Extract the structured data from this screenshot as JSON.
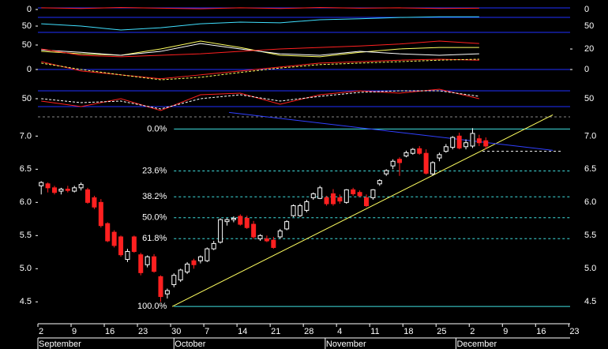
{
  "chart_data": [
    {
      "type": "candlestick",
      "xlim": [
        0,
        80.2
      ],
      "ylim": [
        4.17,
        7.29
      ],
      "up_color": "#ffffff",
      "down_color": "#ff2020",
      "xticks": [
        {
          "value": 0,
          "label": "2"
        },
        {
          "value": 5,
          "label": "9"
        },
        {
          "value": 10,
          "label": "16"
        },
        {
          "value": 15,
          "label": "23"
        },
        {
          "value": 20,
          "label": "30"
        },
        {
          "value": 25,
          "label": "7"
        },
        {
          "value": 30,
          "label": "14"
        },
        {
          "value": 35,
          "label": "21"
        },
        {
          "value": 40,
          "label": "28"
        },
        {
          "value": 45,
          "label": "4"
        },
        {
          "value": 50,
          "label": "11"
        },
        {
          "value": 55,
          "label": "18"
        },
        {
          "value": 60,
          "label": "25"
        },
        {
          "value": 65,
          "label": "2"
        },
        {
          "value": 70,
          "label": "9"
        },
        {
          "value": 75,
          "label": "16"
        },
        {
          "value": 80,
          "label": "23"
        }
      ],
      "months": [
        {
          "value": 0,
          "label": "September"
        },
        {
          "value": 20.5,
          "label": "October"
        },
        {
          "value": 43.3,
          "label": "November"
        },
        {
          "value": 63,
          "label": "December"
        }
      ],
      "yticks": [
        4.5,
        {
          "value": 5,
          "label": "5.0"
        },
        5.5,
        {
          "value": 6,
          "label": "6.0"
        },
        6.5,
        {
          "value": 7,
          "label": "7.0"
        }
      ],
      "x": [
        0.5,
        1.5,
        2.5,
        3.5,
        4.5,
        5.5,
        6.5,
        7.5,
        8.5,
        9.5,
        10.5,
        11.5,
        12.5,
        13.5,
        14.5,
        15.5,
        16.5,
        17.5,
        18.5,
        19.5,
        20.5,
        21.5,
        22.5,
        23.5,
        24.5,
        25.5,
        26.5,
        27.5,
        28.5,
        29.5,
        30.5,
        31.5,
        32.5,
        33.5,
        34.5,
        35.5,
        36.5,
        37.5,
        38.5,
        39.5,
        40.5,
        41.5,
        42.5,
        43.5,
        44.5,
        45.5,
        46.5,
        47.5,
        48.5,
        49.5,
        50.5,
        51.5,
        52.5,
        53.5,
        54.5,
        55.5,
        56.5,
        57.5,
        58.5,
        59.5,
        60.5,
        61.5,
        62.5,
        63.5,
        64.5,
        65.5,
        66.5,
        67.5
      ],
      "open": [
        6.25,
        6.28,
        6.22,
        6.17,
        6.2,
        6.17,
        6.22,
        6.19,
        6.07,
        6.0,
        5.68,
        5.55,
        5.48,
        5.14,
        5.48,
        5.21,
        5.06,
        5.18,
        4.88,
        4.62,
        4.76,
        4.83,
        4.95,
        5.12,
        5.12,
        5.12,
        5.3,
        5.4,
        5.71,
        5.74,
        5.79,
        5.76,
        5.67,
        5.45,
        5.45,
        5.43,
        5.48,
        5.6,
        5.8,
        5.8,
        5.88,
        6.07,
        6.06,
        6.07,
        6.13,
        6.07,
        6.0,
        6.19,
        6.15,
        6.07,
        6.07,
        6.28,
        6.43,
        6.55,
        6.65,
        6.7,
        6.74,
        6.81,
        6.74,
        6.43,
        6.67,
        6.77,
        6.83,
        7.0,
        6.84,
        6.85,
        6.96,
        6.93
      ],
      "high": [
        6.32,
        6.3,
        6.25,
        6.22,
        6.25,
        6.25,
        6.3,
        6.22,
        6.1,
        6.05,
        5.7,
        5.58,
        5.5,
        5.3,
        5.5,
        5.24,
        5.2,
        5.22,
        4.9,
        4.7,
        4.93,
        5.0,
        5.1,
        5.15,
        5.2,
        5.32,
        5.42,
        5.76,
        5.76,
        5.79,
        5.82,
        5.8,
        5.72,
        5.52,
        5.5,
        5.48,
        5.6,
        5.73,
        5.97,
        5.98,
        6.04,
        6.15,
        6.25,
        6.1,
        6.2,
        6.12,
        6.2,
        6.22,
        6.18,
        6.12,
        6.2,
        6.35,
        6.5,
        6.65,
        6.68,
        6.78,
        6.82,
        6.85,
        6.8,
        6.62,
        6.75,
        6.88,
        7.0,
        7.05,
        6.95,
        7.12,
        7.02,
        6.98
      ],
      "low": [
        6.12,
        6.15,
        6.12,
        6.12,
        6.15,
        6.15,
        6.18,
        5.98,
        5.9,
        5.62,
        5.4,
        5.32,
        5.18,
        5.1,
        5.24,
        4.9,
        5.02,
        4.94,
        4.5,
        4.55,
        4.72,
        4.8,
        4.92,
        5.0,
        5.08,
        5.1,
        5.28,
        5.38,
        5.65,
        5.7,
        5.65,
        5.6,
        5.45,
        5.42,
        5.4,
        5.3,
        5.45,
        5.58,
        5.78,
        5.78,
        5.85,
        6.04,
        6.05,
        5.95,
        5.95,
        5.98,
        5.98,
        6.1,
        6.08,
        5.93,
        6.04,
        6.25,
        6.4,
        6.5,
        6.4,
        6.68,
        6.72,
        6.72,
        6.42,
        6.4,
        6.62,
        6.75,
        6.8,
        6.8,
        6.8,
        6.82,
        6.85,
        6.8
      ],
      "close": [
        6.3,
        6.22,
        6.15,
        6.2,
        6.18,
        6.22,
        6.27,
        6.0,
        5.93,
        5.65,
        5.42,
        5.35,
        5.21,
        5.26,
        5.26,
        4.94,
        5.18,
        4.96,
        4.58,
        4.67,
        4.9,
        4.98,
        5.07,
        5.06,
        5.18,
        5.3,
        5.38,
        5.74,
        5.74,
        5.76,
        5.67,
        5.62,
        5.48,
        5.5,
        5.42,
        5.32,
        5.57,
        5.71,
        5.95,
        5.95,
        6.01,
        6.13,
        6.22,
        5.98,
        5.98,
        6.02,
        6.19,
        6.13,
        6.1,
        5.95,
        6.19,
        6.33,
        6.48,
        6.62,
        6.6,
        6.75,
        6.8,
        6.74,
        6.44,
        6.6,
        6.72,
        6.84,
        6.98,
        6.82,
        6.9,
        7.04,
        6.9,
        6.85
      ],
      "fib": {
        "color": "#40e0e0",
        "x_start": 20.5,
        "levels": [
          {
            "value": 7.107,
            "label": "0.0%"
          },
          {
            "value": 6.475,
            "label": "23.6%"
          },
          {
            "value": 6.084,
            "label": "38.2%"
          },
          {
            "value": 5.769,
            "label": "50.0%"
          },
          {
            "value": 5.453,
            "label": "61.8%"
          },
          {
            "value": 4.43,
            "label": "100.0%"
          }
        ]
      },
      "lines": [
        {
          "color": "#ffff60",
          "x": [
            20.24,
            77.6
          ],
          "y": [
            4.43,
            7.32
          ]
        },
        {
          "color": "#3040ff",
          "x": [
            28.8,
            77.6
          ],
          "y": [
            7.357,
            6.786
          ]
        },
        {
          "color": "#ffffff",
          "dash": true,
          "x": [
            67,
            79
          ],
          "y": [
            6.77,
            6.77
          ]
        }
      ]
    },
    {
      "type": "line",
      "xlim": [
        0,
        80.2
      ],
      "ylim": [
        69,
        -28.6
      ],
      "yticks": [
        0,
        50
      ],
      "x": [
        0.5,
        6.5,
        12.5,
        18.5,
        24.5,
        30.5,
        36.5,
        42.5,
        48.5,
        54.5,
        60.5,
        66.5
      ],
      "series": [
        {
          "color": "#ff2020",
          "values": [
            -5,
            -3,
            -6,
            -4,
            -2,
            -5,
            -3,
            -6,
            -4,
            -5,
            -3,
            -4
          ]
        },
        {
          "color": "#40e0ff",
          "values": [
            43,
            50,
            62,
            55,
            43,
            38,
            40,
            31,
            28,
            24,
            22,
            22
          ]
        }
      ]
    },
    {
      "type": "line",
      "xlim": [
        0,
        80.2
      ],
      "ylim": [
        -35.5,
        75.8
      ],
      "yticks": [
        50,
        0
      ],
      "y2lim": [
        -16.9,
        36.2
      ],
      "y2ticks": [
        20,
        0
      ],
      "x": [
        0.5,
        6.5,
        12.5,
        18.5,
        24.5,
        30.5,
        36.5,
        42.5,
        48.5,
        54.5,
        60.5,
        66.5
      ],
      "series": [
        {
          "color": "#ffff60",
          "values": [
            37,
            32,
            29,
            42,
            58,
            45,
            29,
            26,
            35,
            42,
            45,
            45
          ]
        },
        {
          "color": "#ffffff",
          "values": [
            40,
            35,
            29,
            37,
            53,
            42,
            32,
            29,
            37,
            32,
            29,
            32
          ]
        },
        {
          "color": "#ff2020",
          "values": [
            42,
            29,
            26,
            29,
            32,
            37,
            42,
            45,
            48,
            52,
            58,
            53
          ]
        },
        {
          "color": "#ff2020",
          "values": [
            16,
            -3,
            -11,
            -19,
            -11,
            -3,
            5,
            13,
            16,
            19,
            21,
            19
          ]
        },
        {
          "color": "#ffff60",
          "dash": true,
          "values": [
            13,
            0,
            -11,
            -21,
            -16,
            -6,
            3,
            10,
            13,
            16,
            19,
            21
          ]
        }
      ]
    },
    {
      "type": "line",
      "xlim": [
        0,
        80.2
      ],
      "ylim": [
        -19,
        95
      ],
      "yticks": [
        50
      ],
      "x": [
        0.5,
        6.5,
        12.5,
        18.5,
        24.5,
        30.5,
        36.5,
        42.5,
        48.5,
        54.5,
        60.5,
        66.5
      ],
      "series": [
        {
          "color": "#ff2020",
          "values": [
            41,
            20,
            50,
            5,
            65,
            71,
            29,
            65,
            80,
            71,
            86,
            50
          ]
        },
        {
          "color": "#ffffff",
          "dash": true,
          "values": [
            50,
            35,
            41,
            11,
            50,
            65,
            41,
            59,
            74,
            80,
            80,
            59
          ]
        }
      ]
    }
  ]
}
